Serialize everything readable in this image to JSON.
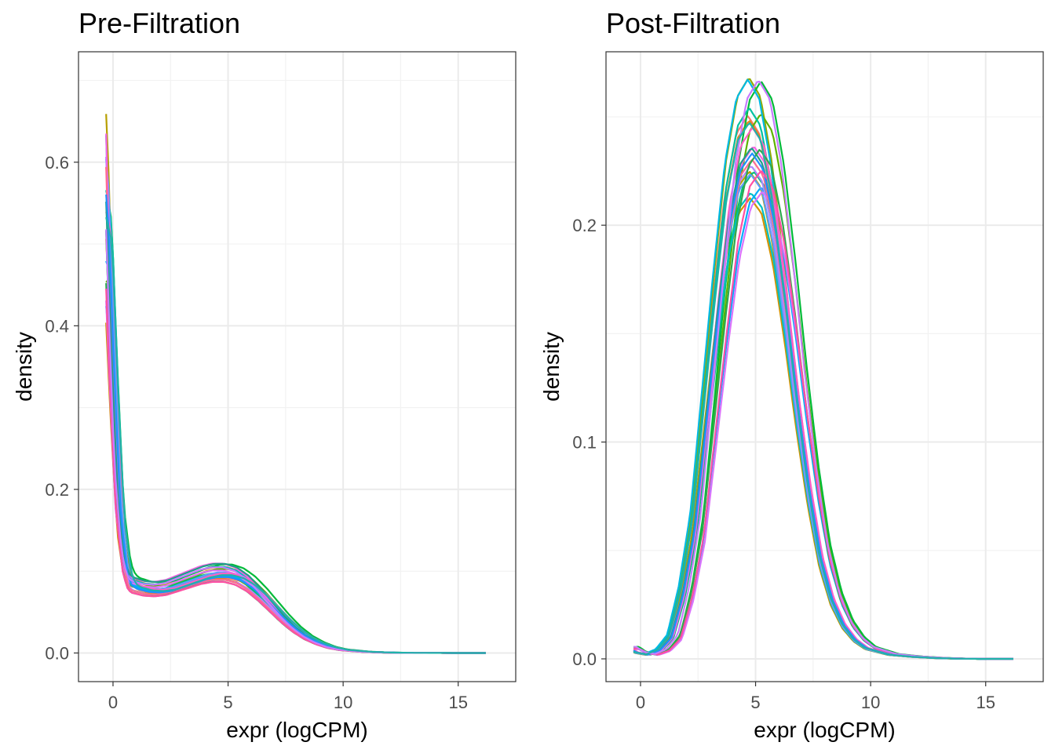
{
  "chart_data": [
    {
      "type": "line",
      "title": "Pre-Filtration",
      "xlabel": "expr (logCPM)",
      "ylabel": "density",
      "xlim": [
        -1.5,
        17.5
      ],
      "ylim": [
        -0.035,
        0.735
      ],
      "xticks": [
        0,
        5,
        10,
        15
      ],
      "xtick_labels": [
        "0",
        "5",
        "10",
        "15"
      ],
      "yticks": [
        0.0,
        0.2,
        0.4,
        0.6
      ],
      "ytick_labels": [
        "0.0",
        "0.2",
        "0.4",
        "0.6"
      ],
      "grid": true,
      "legend": "none",
      "series_count": 24,
      "typical_curve": {
        "x": [
          -0.3,
          -0.2,
          0,
          0.3,
          0.6,
          0.8,
          1.0,
          1.5,
          2.0,
          2.5,
          3.0,
          3.5,
          4.0,
          4.5,
          5.0,
          5.5,
          6.0,
          6.5,
          7.0,
          7.5,
          8.0,
          8.5,
          9.0,
          9.5,
          10,
          11,
          12,
          13,
          14,
          15,
          16.2
        ],
        "y": [
          0.48,
          0.45,
          0.32,
          0.16,
          0.1,
          0.087,
          0.083,
          0.079,
          0.078,
          0.08,
          0.085,
          0.09,
          0.095,
          0.098,
          0.098,
          0.094,
          0.085,
          0.072,
          0.057,
          0.042,
          0.029,
          0.019,
          0.012,
          0.007,
          0.004,
          0.0015,
          0.0005,
          0.0002,
          0.0001,
          0.0,
          0.0
        ]
      },
      "peak_range": [
        0.41,
        0.7
      ]
    },
    {
      "type": "line",
      "title": "Post-Filtration",
      "xlabel": "expr (logCPM)",
      "ylabel": "density",
      "xlim": [
        -1.5,
        17.5
      ],
      "ylim": [
        -0.0105,
        0.28
      ],
      "xticks": [
        0,
        5,
        10,
        15
      ],
      "xtick_labels": [
        "0",
        "5",
        "10",
        "15"
      ],
      "yticks": [
        0.0,
        0.1,
        0.2
      ],
      "ytick_labels": [
        "0.0",
        "0.1",
        "0.2"
      ],
      "grid": true,
      "legend": "none",
      "series_count": 24,
      "typical_curve": {
        "x": [
          -0.3,
          0,
          0.5,
          1.0,
          1.5,
          2.0,
          2.5,
          3.0,
          3.5,
          4.0,
          4.5,
          5.0,
          5.5,
          6.0,
          6.5,
          7.0,
          7.5,
          8.0,
          8.5,
          9.0,
          9.5,
          10,
          11,
          12,
          13,
          14,
          15,
          16.2
        ],
        "y": [
          0.005,
          0.003,
          0.002,
          0.004,
          0.01,
          0.03,
          0.06,
          0.11,
          0.16,
          0.205,
          0.232,
          0.24,
          0.232,
          0.205,
          0.165,
          0.12,
          0.08,
          0.048,
          0.028,
          0.016,
          0.009,
          0.005,
          0.002,
          0.001,
          0.0004,
          0.0001,
          0.0,
          0.0
        ]
      },
      "peak_range": [
        0.18,
        0.27
      ]
    }
  ],
  "colors": {
    "palette": [
      "#f8766d",
      "#e7861b",
      "#d39200",
      "#b79f00",
      "#93aa00",
      "#5eb300",
      "#00ba38",
      "#00bf74",
      "#00c19f",
      "#00bfc4",
      "#00b9e3",
      "#00adfa",
      "#619cff",
      "#ae87ff",
      "#db72fb",
      "#f564e3",
      "#ff61c3",
      "#ff6c91",
      "#1f9e89",
      "#2fa84f",
      "#1e90ff",
      "#ff4fa3",
      "#c77cff",
      "#20b2aa"
    ],
    "grid_major": "#ebebeb",
    "grid_minor": "#f2f2f2",
    "panel_border": "#333333"
  }
}
